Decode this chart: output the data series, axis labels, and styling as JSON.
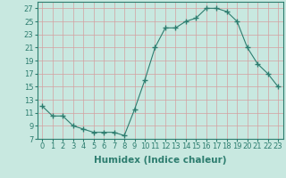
{
  "x": [
    0,
    1,
    2,
    3,
    4,
    5,
    6,
    7,
    8,
    9,
    10,
    11,
    12,
    13,
    14,
    15,
    16,
    17,
    18,
    19,
    20,
    21,
    22,
    23
  ],
  "y": [
    12.0,
    10.5,
    10.5,
    9.0,
    8.5,
    8.0,
    8.0,
    8.0,
    7.5,
    11.5,
    16.0,
    21.0,
    24.0,
    24.0,
    25.0,
    25.5,
    27.0,
    27.0,
    26.5,
    25.0,
    21.0,
    18.5,
    17.0,
    15.0
  ],
  "line_color": "#2d7d6f",
  "marker": "+",
  "marker_size": 4,
  "bg_color": "#c8e8e0",
  "grid_color": "#d4a0a0",
  "xlabel": "Humidex (Indice chaleur)",
  "ylim": [
    7,
    28
  ],
  "yticks": [
    7,
    9,
    11,
    13,
    15,
    17,
    19,
    21,
    23,
    25,
    27
  ],
  "xticks": [
    0,
    1,
    2,
    3,
    4,
    5,
    6,
    7,
    8,
    9,
    10,
    11,
    12,
    13,
    14,
    15,
    16,
    17,
    18,
    19,
    20,
    21,
    22,
    23
  ],
  "xtick_labels": [
    "0",
    "1",
    "2",
    "3",
    "4",
    "5",
    "6",
    "7",
    "8",
    "9",
    "10",
    "11",
    "12",
    "13",
    "14",
    "15",
    "16",
    "17",
    "18",
    "19",
    "20",
    "21",
    "22",
    "23"
  ],
  "font_color": "#2d7d6f",
  "font_size": 6,
  "label_font_size": 7.5
}
